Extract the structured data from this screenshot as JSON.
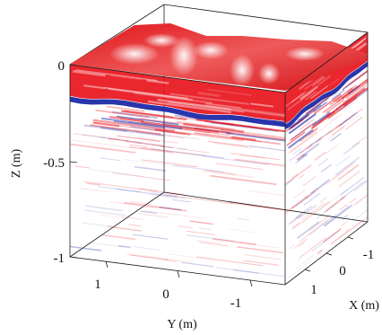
{
  "chart_data": {
    "type": "volume-slice-3d",
    "xlabel": "X (m)",
    "ylabel": "Y (m)",
    "zlabel": "Z (m)",
    "x_ticks": [
      "-1",
      "0",
      "1"
    ],
    "y_ticks": [
      "1",
      "0",
      "-1"
    ],
    "z_ticks": [
      "0",
      "-0.5",
      "-1"
    ],
    "x_range": [
      -1.4,
      1.4
    ],
    "y_range": [
      -1.4,
      1.4
    ],
    "z_range": [
      -1.1,
      0.02
    ],
    "grid": false,
    "legend": "none",
    "colormap": {
      "positive": "#e8141c",
      "negative": "#1c2aa8",
      "zero": "#ffffff"
    },
    "layers": [
      {
        "name_visible": false,
        "z_top": 0.0,
        "z_bottom": -0.12,
        "polarity": "positive",
        "intensity": "strong"
      },
      {
        "name_visible": false,
        "z_top": -0.12,
        "z_bottom": -0.16,
        "polarity": "positive",
        "intensity": "strong"
      },
      {
        "name_visible": false,
        "z_top": -0.16,
        "z_bottom": -0.19,
        "polarity": "negative",
        "intensity": "strong"
      },
      {
        "name_visible": false,
        "z_top": -0.19,
        "z_bottom": -0.3,
        "polarity": "mixed",
        "intensity": "moderate"
      },
      {
        "name_visible": false,
        "z_top": -0.3,
        "z_bottom": -1.0,
        "polarity": "mixed",
        "intensity": "faint"
      }
    ]
  }
}
